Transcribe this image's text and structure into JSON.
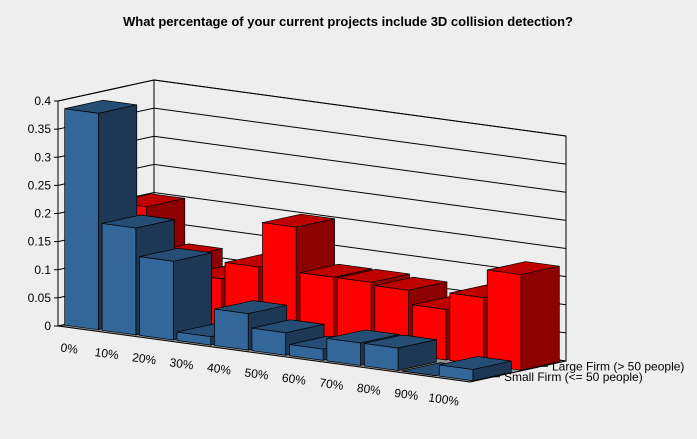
{
  "chart_data": {
    "type": "bar",
    "title": "What percentage of your current projects include 3D collision detection?",
    "xlabel": "",
    "ylabel": "",
    "ylim": [
      0,
      0.4
    ],
    "yticks": [
      "0",
      "0.05",
      "0.1",
      "0.15",
      "0.2",
      "0.25",
      "0.3",
      "0.35",
      "0.4"
    ],
    "categories": [
      "0%",
      "10%",
      "20%",
      "30%",
      "40%",
      "50%",
      "60%",
      "70%",
      "80%",
      "90%",
      "100%"
    ],
    "series": [
      {
        "name": "Small Firm (<= 50 people)",
        "color": "#336699",
        "values": [
          0.385,
          0.19,
          0.14,
          0.015,
          0.065,
          0.04,
          0.02,
          0.04,
          0.04,
          0.0,
          0.02
        ]
      },
      {
        "name": "Large Firm (> 50 people)",
        "color": "#ff0000",
        "values": [
          0.2,
          0.12,
          0.09,
          0.12,
          0.2,
          0.12,
          0.12,
          0.115,
          0.09,
          0.12,
          0.17
        ]
      }
    ],
    "legend": "depth-axis labels at right",
    "grid": true,
    "projection": "3d"
  }
}
